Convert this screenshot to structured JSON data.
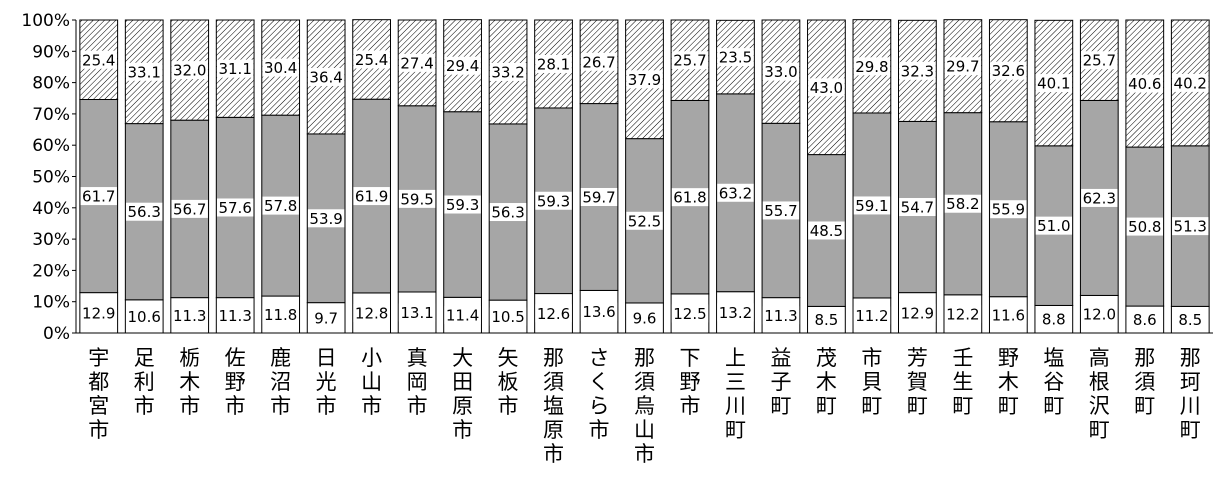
{
  "chart_data": {
    "type": "bar",
    "stacked": true,
    "y_unit": "%",
    "ylim": [
      0,
      100
    ],
    "y_ticks": [
      "0%",
      "10%",
      "20%",
      "30%",
      "40%",
      "50%",
      "60%",
      "70%",
      "80%",
      "90%",
      "100%"
    ],
    "grid": false,
    "legend": "none",
    "categories": [
      "宇都宮市",
      "足利市",
      "栃木市",
      "佐野市",
      "鹿沼市",
      "日光市",
      "小山市",
      "真岡市",
      "大田原市",
      "矢板市",
      "那須塩原市",
      "さくら市",
      "那須烏山市",
      "下野市",
      "上三川町",
      "益子町",
      "茂木町",
      "市貝町",
      "芳賀町",
      "壬生町",
      "野木町",
      "塩谷町",
      "高根沢町",
      "那須町",
      "那珂川町"
    ],
    "series": [
      {
        "fill": "#ffffff",
        "values": [
          12.9,
          10.6,
          11.3,
          11.3,
          11.8,
          9.7,
          12.8,
          13.1,
          11.4,
          10.5,
          12.6,
          13.6,
          9.6,
          12.5,
          13.2,
          11.3,
          8.5,
          11.2,
          12.9,
          12.2,
          11.6,
          8.8,
          12.0,
          8.6,
          8.5
        ]
      },
      {
        "fill": "#a6a6a6",
        "values": [
          61.7,
          56.3,
          56.7,
          57.6,
          57.8,
          53.9,
          61.9,
          59.5,
          59.3,
          56.3,
          59.3,
          59.7,
          52.5,
          61.8,
          63.2,
          55.7,
          48.5,
          59.1,
          54.7,
          58.2,
          55.9,
          51.0,
          62.3,
          50.8,
          51.3
        ]
      },
      {
        "fill": "hatched",
        "values": [
          25.4,
          33.1,
          32.0,
          31.1,
          30.4,
          36.4,
          25.4,
          27.4,
          29.4,
          33.2,
          28.1,
          26.7,
          37.9,
          25.7,
          23.5,
          33.0,
          43.0,
          29.8,
          32.3,
          29.7,
          32.6,
          40.1,
          25.7,
          40.6,
          40.2
        ]
      }
    ]
  }
}
